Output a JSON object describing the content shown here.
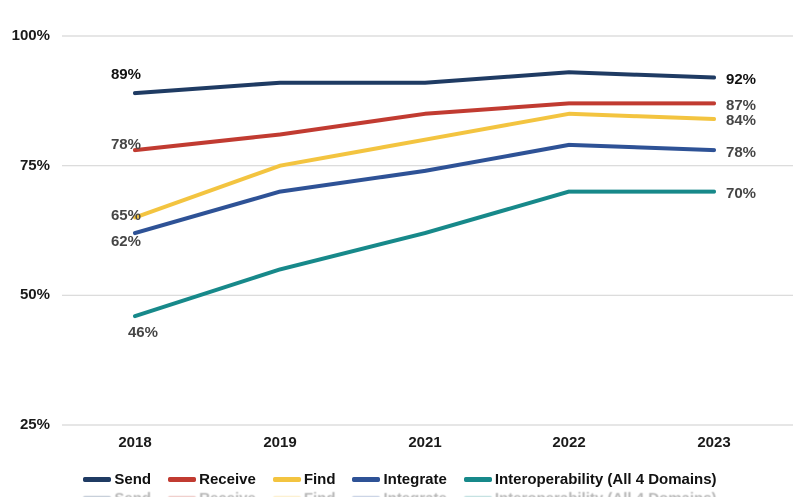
{
  "page": {
    "background": "#ffffff"
  },
  "chart_data": {
    "type": "line",
    "categories": [
      "2018",
      "2019",
      "2021",
      "2022",
      "2023"
    ],
    "series": [
      {
        "name": "Send",
        "color": "#1f3b63",
        "values": [
          89,
          91,
          91,
          93,
          92
        ],
        "start_label": "89%",
        "end_label": "92%"
      },
      {
        "name": "Receive",
        "color": "#c13b31",
        "values": [
          78,
          81,
          85,
          87,
          87
        ],
        "start_label": "78%",
        "end_label": "87%"
      },
      {
        "name": "Find",
        "color": "#f3c440",
        "values": [
          65,
          75,
          80,
          85,
          84
        ],
        "start_label": "65%",
        "end_label": "84%"
      },
      {
        "name": "Integrate",
        "color": "#2e5296",
        "values": [
          62,
          70,
          74,
          79,
          78
        ],
        "start_label": "62%",
        "end_label": "78%"
      },
      {
        "name": "Interoperability (All 4 Domains)",
        "color": "#17898a",
        "values": [
          46,
          55,
          62,
          70,
          70
        ],
        "start_label": "46%",
        "end_label": "70%"
      }
    ],
    "y_axis": {
      "tick_labels": [
        "100%",
        "75%",
        "50%",
        "25%"
      ],
      "tick_values": [
        100,
        75,
        50,
        25
      ],
      "range": [
        25,
        100
      ]
    },
    "grid": true,
    "legend_position": "bottom",
    "text_colors": {
      "emphasis": "#111111",
      "muted": "#454545"
    },
    "gridline_color": "#d7d7d7"
  }
}
